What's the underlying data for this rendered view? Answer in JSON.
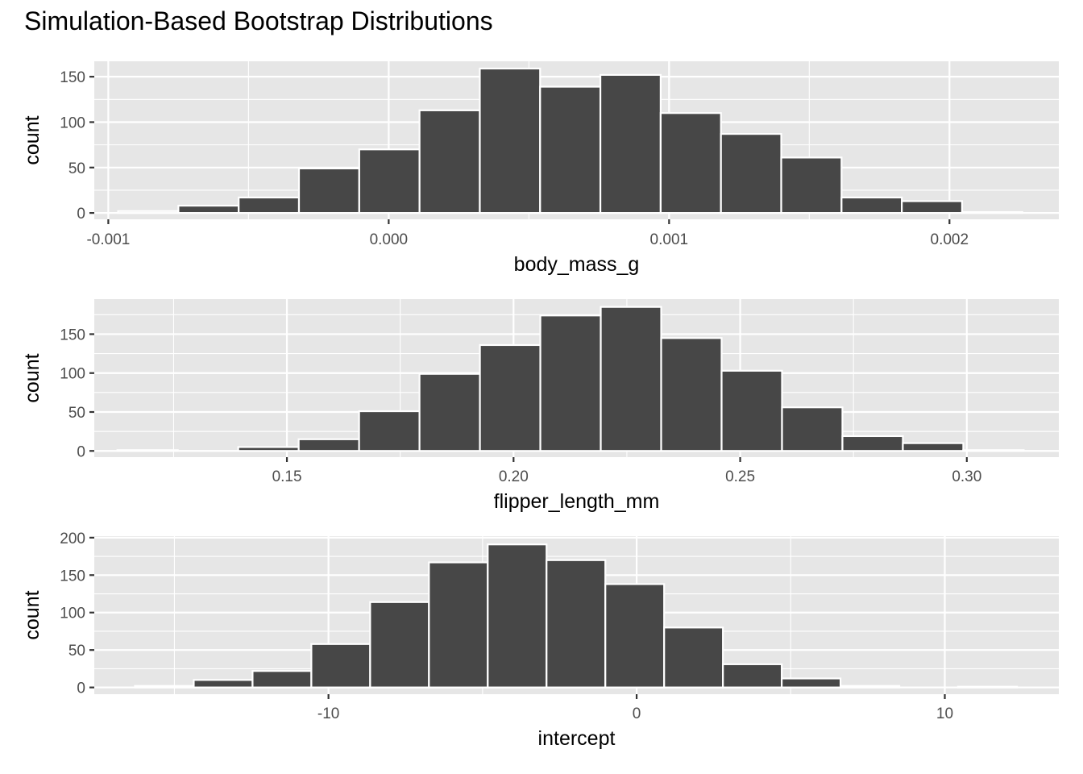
{
  "title": "Simulation-Based Bootstrap Distributions",
  "chart_data": [
    {
      "type": "bar",
      "subtype": "histogram",
      "xlabel": "body_mass_g",
      "ylabel": "count",
      "grid": true,
      "xlim": [
        -0.00105,
        0.00239
      ],
      "ylim": [
        -7,
        167
      ],
      "xticks": [
        -0.001,
        0.0,
        0.001,
        0.002
      ],
      "xtick_labels": [
        "-0.001",
        "0.000",
        "0.001",
        "0.002"
      ],
      "yticks": [
        0,
        50,
        100,
        150
      ],
      "bin_width": 0.000215,
      "bin_start": -0.000965,
      "values": [
        2,
        8,
        17,
        49,
        70,
        113,
        159,
        139,
        152,
        110,
        87,
        61,
        17,
        13,
        1
      ]
    },
    {
      "type": "bar",
      "subtype": "histogram",
      "xlabel": "flipper_length_mm",
      "ylabel": "count",
      "grid": true,
      "xlim": [
        0.1075,
        0.3203
      ],
      "ylim": [
        -8,
        195
      ],
      "xticks": [
        0.15,
        0.2,
        0.25,
        0.3
      ],
      "xtick_labels": [
        "0.15",
        "0.20",
        "0.25",
        "0.30"
      ],
      "yticks": [
        0,
        50,
        100,
        150
      ],
      "bin_width": 0.01333,
      "bin_start": 0.1126,
      "values": [
        1,
        0,
        5,
        15,
        51,
        99,
        136,
        174,
        185,
        145,
        103,
        56,
        19,
        10,
        1
      ]
    },
    {
      "type": "bar",
      "subtype": "histogram",
      "xlabel": "intercept",
      "ylabel": "count",
      "grid": true,
      "xlim": [
        -17.6,
        13.7
      ],
      "ylim": [
        -9,
        202
      ],
      "xticks": [
        -10,
        0,
        10
      ],
      "xtick_labels": [
        "-10",
        "0",
        "10"
      ],
      "yticks": [
        0,
        50,
        100,
        150,
        200
      ],
      "bin_width": 1.908,
      "bin_start": -16.28,
      "values": [
        2,
        10,
        22,
        58,
        114,
        167,
        191,
        170,
        138,
        80,
        31,
        12,
        2,
        0,
        1
      ]
    }
  ]
}
